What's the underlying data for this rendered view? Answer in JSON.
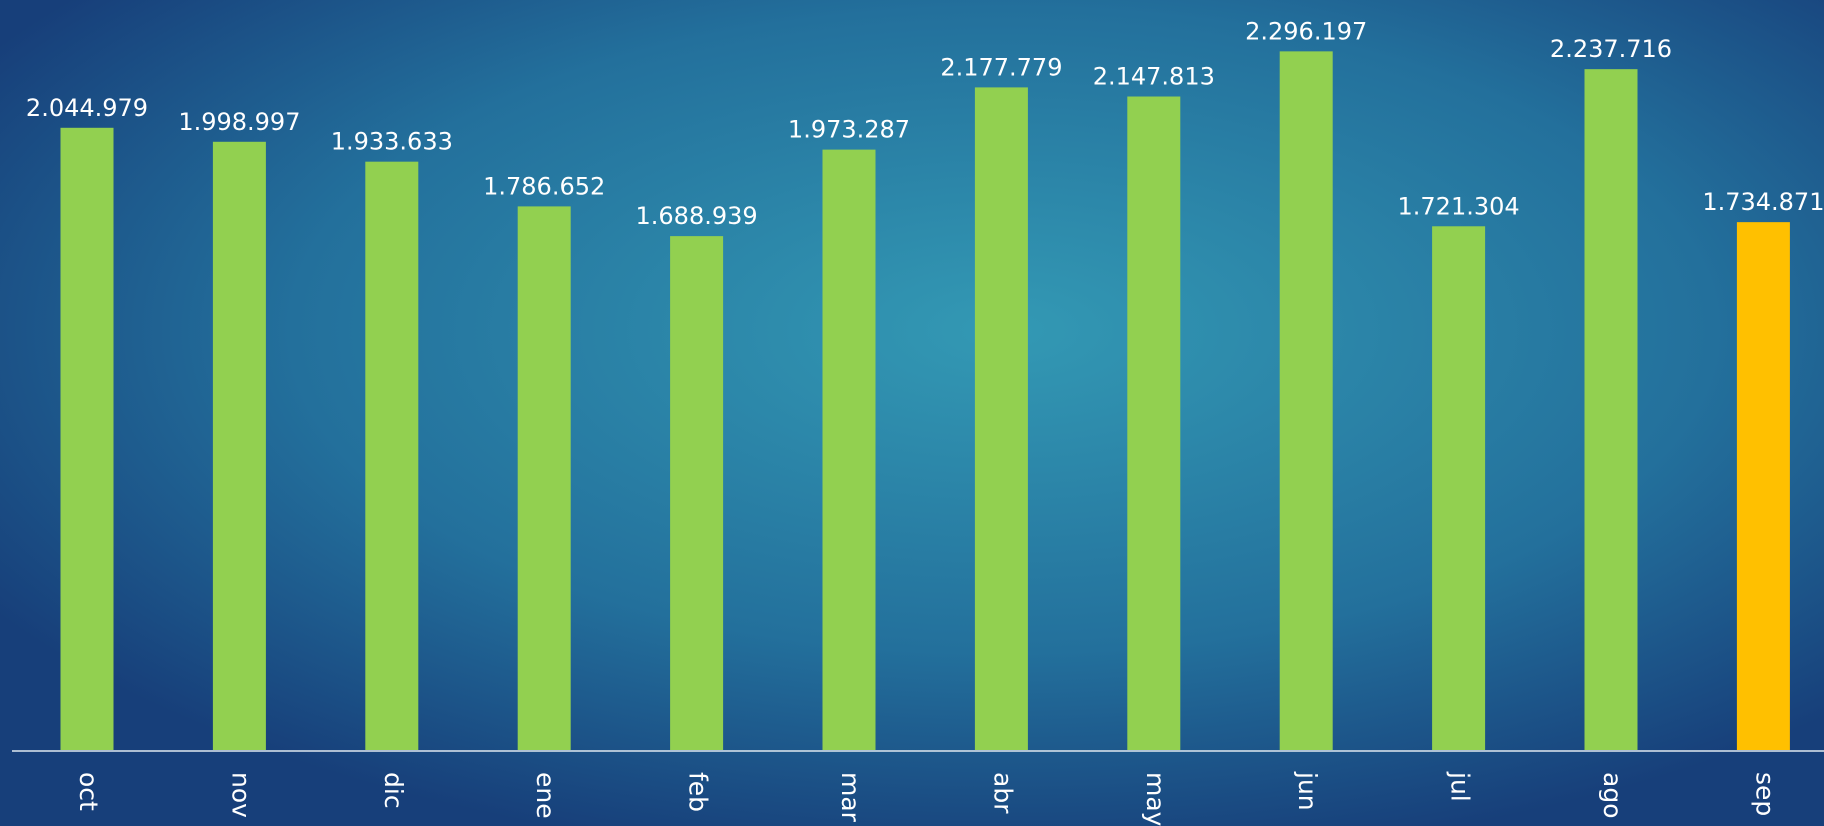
{
  "chart_data": {
    "type": "bar",
    "categories": [
      "oct",
      "nov",
      "dic",
      "ene",
      "feb",
      "mar",
      "abr",
      "may",
      "jun",
      "jul",
      "ago",
      "sep"
    ],
    "values": [
      2044979,
      1998997,
      1933633,
      1786652,
      1688939,
      1973287,
      2177779,
      2147813,
      2296197,
      1721304,
      2237716,
      1734871
    ],
    "value_labels": [
      "2.044.979",
      "1.998.997",
      "1.933.633",
      "1.786.652",
      "1.688.939",
      "1.973.287",
      "2.177.779",
      "2.147.813",
      "2.296.197",
      "1.721.304",
      "2.237.716",
      "1.734.871"
    ],
    "colors": [
      "#92d050",
      "#92d050",
      "#92d050",
      "#92d050",
      "#92d050",
      "#92d050",
      "#92d050",
      "#92d050",
      "#92d050",
      "#92d050",
      "#92d050",
      "#ffc000"
    ],
    "ylim": [
      0,
      2465000
    ]
  }
}
